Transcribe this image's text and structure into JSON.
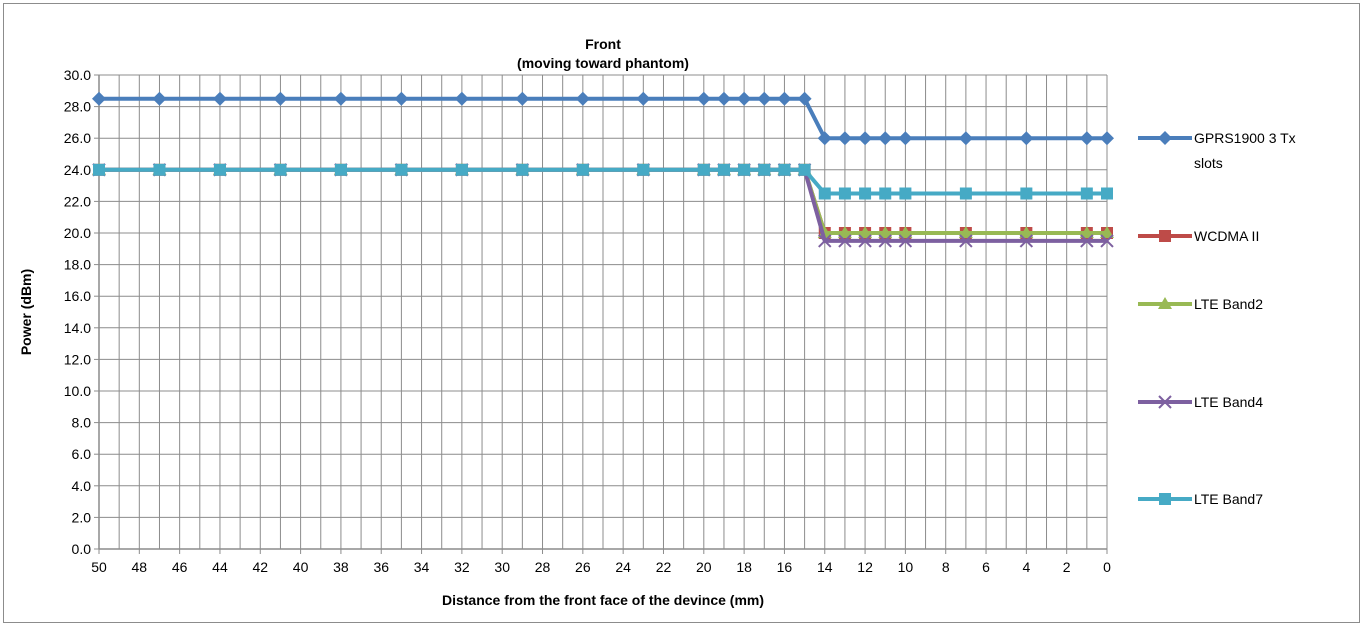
{
  "chart_data": {
    "type": "line",
    "title": "Front",
    "subtitle": "(moving toward phantom)",
    "xlabel": "Distance from the front face of the devince (mm)",
    "ylabel": "Power (dBm)",
    "ylim": [
      0,
      30
    ],
    "xlim": [
      50,
      0
    ],
    "x_reversed": true,
    "grid": true,
    "legend_position": "right",
    "y_ticks": [
      "0.0",
      "2.0",
      "4.0",
      "6.0",
      "8.0",
      "10.0",
      "12.0",
      "14.0",
      "16.0",
      "18.0",
      "20.0",
      "22.0",
      "24.0",
      "26.0",
      "28.0",
      "30.0"
    ],
    "x_ticks": [
      "50",
      "48",
      "46",
      "44",
      "42",
      "40",
      "38",
      "36",
      "34",
      "32",
      "30",
      "28",
      "26",
      "24",
      "22",
      "20",
      "18",
      "16",
      "14",
      "12",
      "10",
      "8",
      "6",
      "4",
      "2",
      "0"
    ],
    "series": [
      {
        "name": "GPRS1900  3 Tx slots",
        "legend_lines": [
          "GPRS1900  3 Tx",
          "slots"
        ],
        "color": "#4a7ebb",
        "marker": "diamond",
        "x": [
          50,
          47,
          44,
          41,
          38,
          35,
          32,
          29,
          26,
          23,
          20,
          19,
          18,
          17,
          16,
          15,
          14,
          13,
          12,
          11,
          10,
          7,
          4,
          1,
          0
        ],
        "y": [
          28.5,
          28.5,
          28.5,
          28.5,
          28.5,
          28.5,
          28.5,
          28.5,
          28.5,
          28.5,
          28.5,
          28.5,
          28.5,
          28.5,
          28.5,
          28.5,
          26,
          26,
          26,
          26,
          26,
          26,
          26,
          26,
          26
        ]
      },
      {
        "name": "WCDMA II",
        "legend_lines": [
          "WCDMA II"
        ],
        "color": "#be4b48",
        "marker": "square",
        "x": [
          50,
          47,
          44,
          41,
          38,
          35,
          32,
          29,
          26,
          23,
          20,
          19,
          18,
          17,
          16,
          15,
          14,
          13,
          12,
          11,
          10,
          7,
          4,
          1,
          0
        ],
        "y": [
          24,
          24,
          24,
          24,
          24,
          24,
          24,
          24,
          24,
          24,
          24,
          24,
          24,
          24,
          24,
          24,
          20,
          20,
          20,
          20,
          20,
          20,
          20,
          20,
          20
        ]
      },
      {
        "name": "LTE Band2",
        "legend_lines": [
          "LTE Band2"
        ],
        "color": "#98b954",
        "marker": "triangle",
        "x": [
          50,
          47,
          44,
          41,
          38,
          35,
          32,
          29,
          26,
          23,
          20,
          19,
          18,
          17,
          16,
          15,
          14,
          13,
          12,
          11,
          10,
          7,
          4,
          1,
          0
        ],
        "y": [
          24,
          24,
          24,
          24,
          24,
          24,
          24,
          24,
          24,
          24,
          24,
          24,
          24,
          24,
          24,
          24,
          20,
          20,
          20,
          20,
          20,
          20,
          20,
          20,
          20
        ]
      },
      {
        "name": "LTE Band4",
        "legend_lines": [
          "LTE Band4"
        ],
        "color": "#7d60a0",
        "marker": "x",
        "x": [
          50,
          47,
          44,
          41,
          38,
          35,
          32,
          29,
          26,
          23,
          20,
          19,
          18,
          17,
          16,
          15,
          14,
          13,
          12,
          11,
          10,
          7,
          4,
          1,
          0
        ],
        "y": [
          24,
          24,
          24,
          24,
          24,
          24,
          24,
          24,
          24,
          24,
          24,
          24,
          24,
          24,
          24,
          24,
          19.5,
          19.5,
          19.5,
          19.5,
          19.5,
          19.5,
          19.5,
          19.5,
          19.5
        ]
      },
      {
        "name": "LTE Band7",
        "legend_lines": [
          "LTE Band7"
        ],
        "color": "#46aac5",
        "marker": "square",
        "x": [
          50,
          47,
          44,
          41,
          38,
          35,
          32,
          29,
          26,
          23,
          20,
          19,
          18,
          17,
          16,
          15,
          14,
          13,
          12,
          11,
          10,
          7,
          4,
          1,
          0
        ],
        "y": [
          24,
          24,
          24,
          24,
          24,
          24,
          24,
          24,
          24,
          24,
          24,
          24,
          24,
          24,
          24,
          24,
          22.5,
          22.5,
          22.5,
          22.5,
          22.5,
          22.5,
          22.5,
          22.5,
          22.5
        ]
      }
    ]
  }
}
